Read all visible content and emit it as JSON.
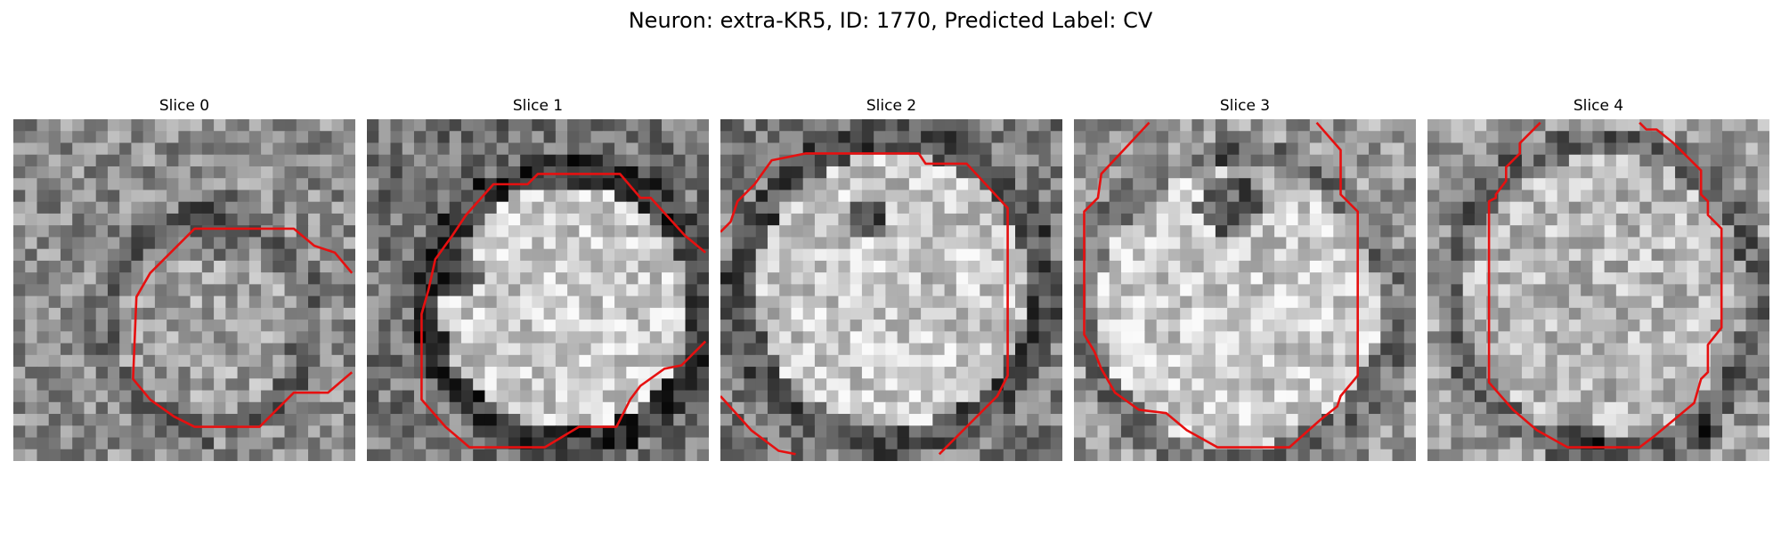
{
  "figure": {
    "title": "Neuron: extra-KR5, ID: 1770, Predicted Label: CV"
  },
  "contour_color": "#e61010",
  "colormap": "gray",
  "panels": [
    {
      "title": "Slice 0"
    },
    {
      "title": "Slice 1"
    },
    {
      "title": "Slice 2"
    },
    {
      "title": "Slice 3"
    },
    {
      "title": "Slice 4"
    }
  ]
}
